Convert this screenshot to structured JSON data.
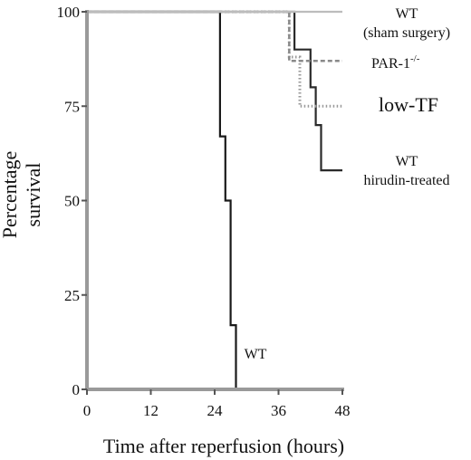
{
  "chart_data": {
    "type": "line",
    "step": true,
    "xlabel": "Time after reperfusion (hours)",
    "ylabel": [
      "Percentage",
      "survival"
    ],
    "xlim": [
      0,
      48
    ],
    "ylim": [
      0,
      100
    ],
    "xticks": [
      0,
      12,
      24,
      36,
      48
    ],
    "yticks": [
      0,
      25,
      50,
      75,
      100
    ],
    "grid": false,
    "series": [
      {
        "name": "WT",
        "label_lines": [
          "WT"
        ],
        "color": "#1a1a1a",
        "style": "solid",
        "points": [
          [
            0,
            100
          ],
          [
            25,
            100
          ],
          [
            25,
            67
          ],
          [
            26,
            67
          ],
          [
            26,
            50
          ],
          [
            27,
            50
          ],
          [
            27,
            17
          ],
          [
            28,
            17
          ],
          [
            28,
            0
          ],
          [
            48,
            0
          ]
        ]
      },
      {
        "name": "WT hirudin-treated",
        "label_lines": [
          "WT",
          "hirudin-treated"
        ],
        "color": "#2a2a2a",
        "style": "solid",
        "points": [
          [
            0,
            100
          ],
          [
            39,
            100
          ],
          [
            39,
            90
          ],
          [
            42,
            90
          ],
          [
            42,
            80
          ],
          [
            43,
            80
          ],
          [
            43,
            70
          ],
          [
            44,
            70
          ],
          [
            44,
            58
          ],
          [
            48,
            58
          ]
        ]
      },
      {
        "name": "low-TF",
        "label_lines": [
          "low-TF"
        ],
        "color": "#9a9a9a",
        "style": "dotted",
        "points": [
          [
            0,
            100
          ],
          [
            38,
            100
          ],
          [
            38,
            88
          ],
          [
            40,
            88
          ],
          [
            40,
            75
          ],
          [
            48,
            75
          ]
        ]
      },
      {
        "name": "PAR-1-/-",
        "label_base": "PAR-1",
        "label_sup": "-/-",
        "color": "#8a8a8a",
        "style": "dashed",
        "points": [
          [
            0,
            100
          ],
          [
            38,
            100
          ],
          [
            38,
            87
          ],
          [
            48,
            87
          ]
        ]
      },
      {
        "name": "WT (sham surgery)",
        "label_lines": [
          "WT",
          "(sham surgery)"
        ],
        "color": "#bcbcbc",
        "style": "solid",
        "points": [
          [
            0,
            100
          ],
          [
            48,
            100
          ]
        ]
      }
    ]
  }
}
